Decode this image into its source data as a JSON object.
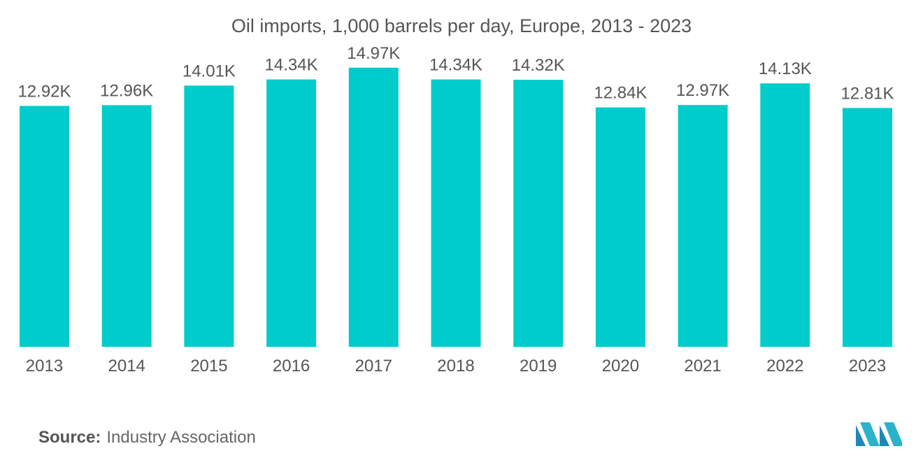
{
  "chart_data": {
    "type": "bar",
    "title": "Oil imports, 1,000 barrels per day, Europe, 2013 - 2023",
    "categories": [
      "2013",
      "2014",
      "2015",
      "2016",
      "2017",
      "2018",
      "2019",
      "2020",
      "2021",
      "2022",
      "2023"
    ],
    "values": [
      12.92,
      12.96,
      14.01,
      14.34,
      14.97,
      14.34,
      14.32,
      12.84,
      12.97,
      14.13,
      12.81
    ],
    "data_labels": [
      "12.92K",
      "12.96K",
      "14.01K",
      "14.34K",
      "14.97K",
      "14.34K",
      "14.32K",
      "12.84K",
      "12.97K",
      "14.13K",
      "12.81K"
    ],
    "xlabel": "",
    "ylabel": "",
    "ylim": [
      0,
      15
    ],
    "grid": false,
    "colors": {
      "bar": "#00CCCC",
      "label": "#555555"
    }
  },
  "source": {
    "label": "Source:",
    "text": "Industry Association"
  },
  "logo": {
    "icon": "company-logo-icon"
  }
}
